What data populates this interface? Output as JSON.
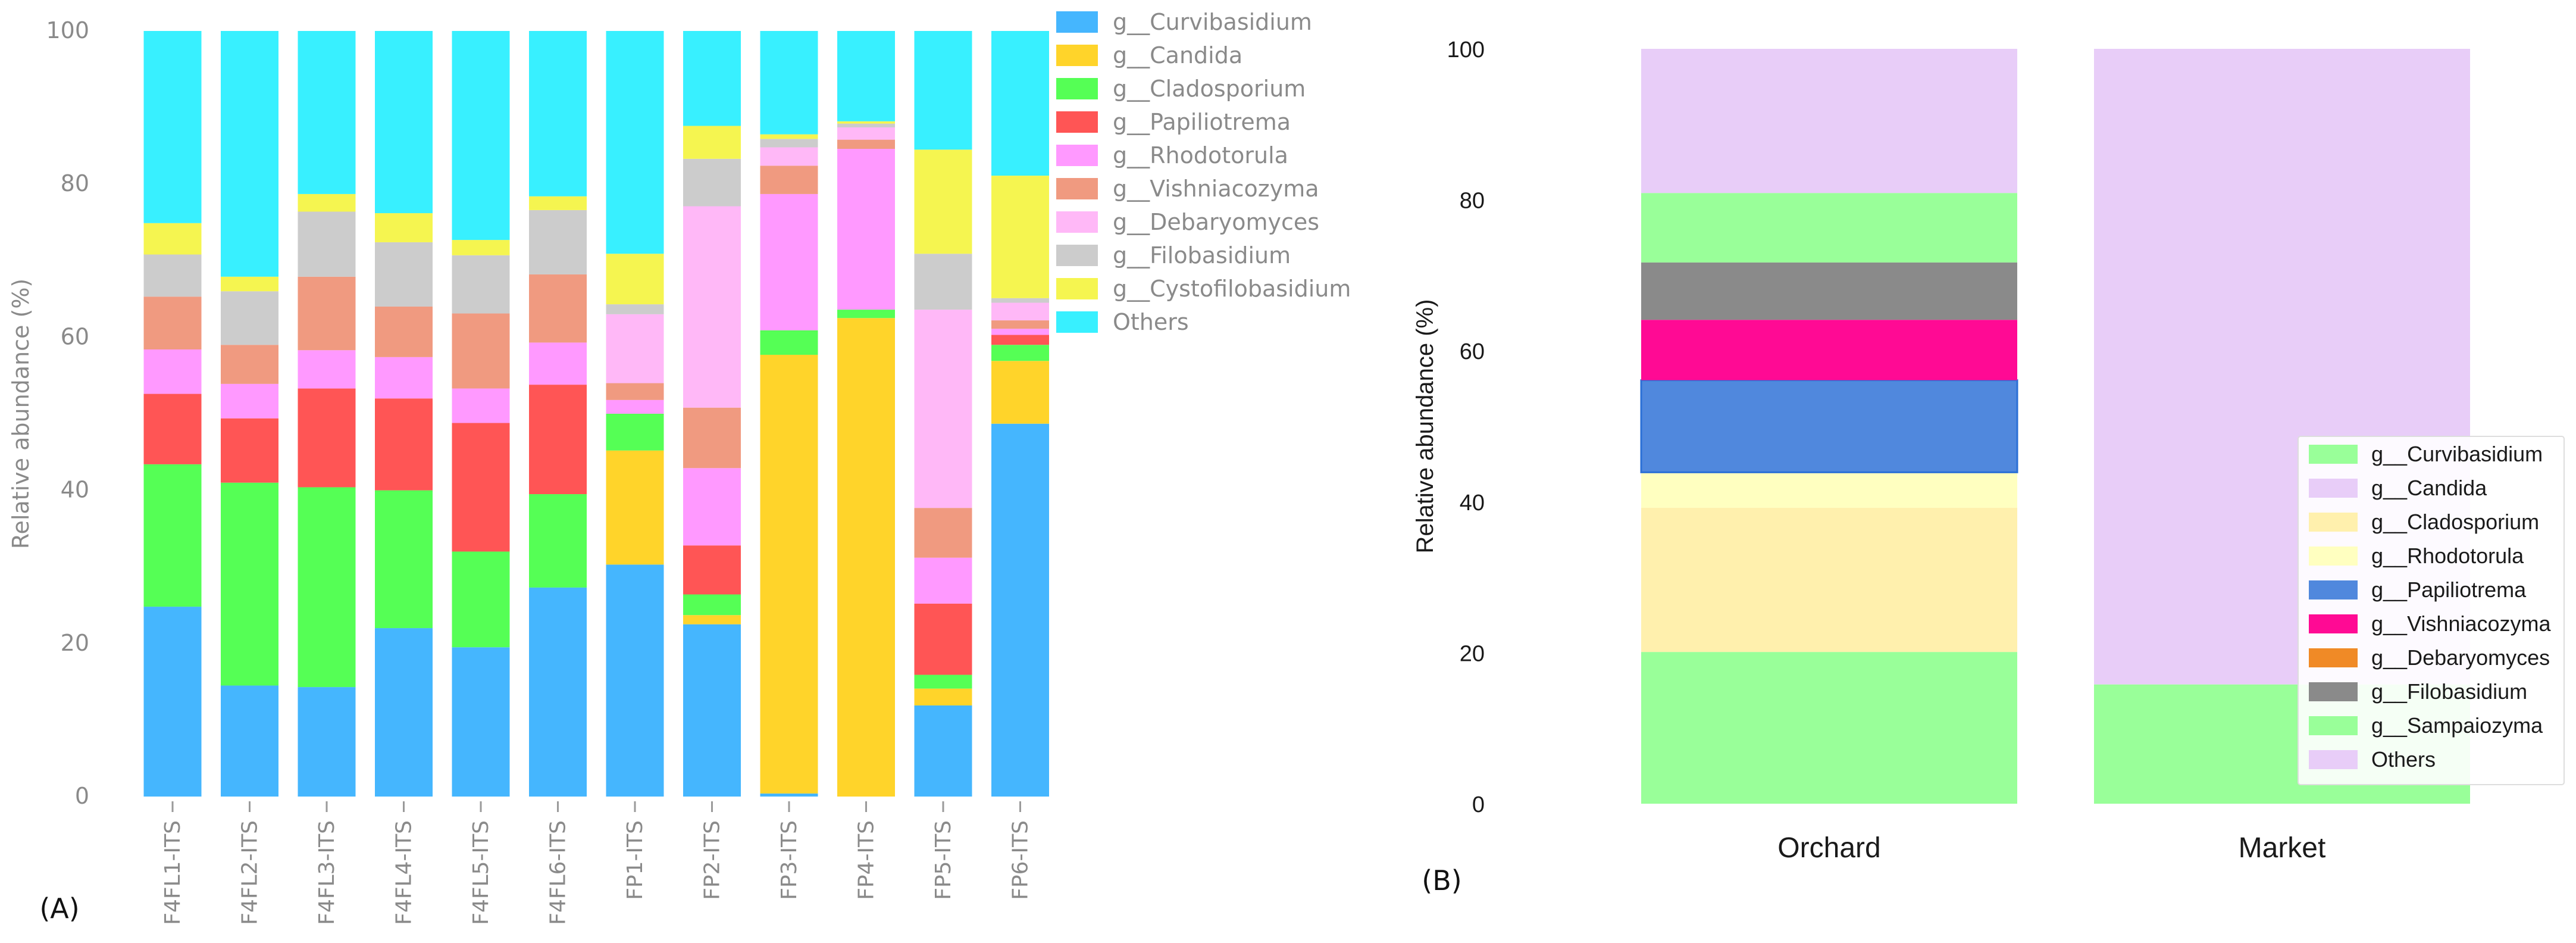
{
  "chart_data": [
    {
      "type": "bar",
      "stacked": true,
      "panel_label": "(A)",
      "ylabel": "Relative abundance (%)",
      "ylim": [
        0,
        100
      ],
      "yticks": [
        0,
        20,
        40,
        60,
        80,
        100
      ],
      "grid": false,
      "legend_placement": "right",
      "categories": [
        "F4FL1-ITS",
        "F4FL2-ITS",
        "F4FL3-ITS",
        "F4FL4-ITS",
        "F4FL5-ITS",
        "F4FL6-ITS",
        "FP1-ITS",
        "FP2-ITS",
        "FP3-ITS",
        "FP4-ITS",
        "FP5-ITS",
        "FP6-ITS"
      ],
      "series": [
        {
          "name": "g__Curvibasidium",
          "color": "#45b6fe",
          "values": [
            24.8,
            14.5,
            14.3,
            22.0,
            19.5,
            27.3,
            30.3,
            22.5,
            0.4,
            0.0,
            11.9,
            48.7
          ]
        },
        {
          "name": "g__Candida",
          "color": "#ffd42a",
          "values": [
            0.0,
            0.0,
            0.0,
            0.0,
            0.0,
            0.0,
            14.9,
            1.2,
            57.3,
            62.5,
            2.2,
            8.2
          ]
        },
        {
          "name": "g__Cladosporium",
          "color": "#55ff55",
          "values": [
            18.6,
            26.5,
            26.1,
            18.0,
            12.5,
            12.2,
            4.8,
            2.7,
            3.2,
            1.1,
            1.8,
            2.1
          ]
        },
        {
          "name": "g__Papiliotrema",
          "color": "#ff5555",
          "values": [
            9.2,
            8.4,
            12.9,
            12.0,
            16.8,
            14.3,
            0.0,
            6.4,
            0.0,
            0.0,
            9.3,
            1.3
          ]
        },
        {
          "name": "g__Rhodotorula",
          "color": "#ff99ff",
          "values": [
            5.8,
            4.5,
            5.0,
            5.4,
            4.5,
            5.5,
            1.8,
            10.1,
            17.8,
            21.0,
            6.0,
            0.8
          ]
        },
        {
          "name": "g__Vishniacozyma",
          "color": "#f09a80",
          "values": [
            6.9,
            5.1,
            9.6,
            6.6,
            9.8,
            8.9,
            2.2,
            7.9,
            3.7,
            1.2,
            6.5,
            1.1
          ]
        },
        {
          "name": "g__Debaryomyces",
          "color": "#ffb8f7",
          "values": [
            0.0,
            0.0,
            0.0,
            0.0,
            0.0,
            0.0,
            9.0,
            26.3,
            2.4,
            1.6,
            25.9,
            2.3
          ]
        },
        {
          "name": "g__Filobasidium",
          "color": "#cccccc",
          "values": [
            5.5,
            7.0,
            8.5,
            8.4,
            7.6,
            8.4,
            1.3,
            6.2,
            1.1,
            0.5,
            7.3,
            0.6
          ]
        },
        {
          "name": "g__Cystofilobasidium",
          "color": "#f5f550",
          "values": [
            4.1,
            1.9,
            2.3,
            3.8,
            2.0,
            1.8,
            6.6,
            4.3,
            0.6,
            0.3,
            13.6,
            16.0
          ]
        },
        {
          "name": "Others",
          "color": "#38f0ff",
          "values": [
            25.1,
            32.1,
            21.3,
            23.8,
            27.3,
            21.6,
            29.1,
            12.4,
            13.5,
            11.8,
            15.5,
            18.9
          ]
        }
      ]
    },
    {
      "type": "bar",
      "stacked": true,
      "panel_label": "(B)",
      "ylabel": "Relative abundance (%)",
      "ylim": [
        0,
        100
      ],
      "yticks": [
        0,
        20,
        40,
        60,
        80,
        100
      ],
      "grid": false,
      "legend_placement": "bottom-right",
      "categories": [
        "Orchard",
        "Market"
      ],
      "series": [
        {
          "name": "g__Curvibasidium",
          "color": "#99ff99",
          "values": [
            20.1,
            0.0
          ]
        },
        {
          "name": "g__Candida",
          "color": "#e8cdf8",
          "values": [
            0.0,
            0.0
          ]
        },
        {
          "name": "g__Cladosporium",
          "color": "#fff0ad",
          "values": [
            19.1,
            0.0
          ]
        },
        {
          "name": "g__Rhodotorula",
          "color": "#ffffc0",
          "values": [
            4.7,
            0.0
          ]
        },
        {
          "name": "g__Papiliotrema",
          "color": "#5088dd",
          "values": [
            12.2,
            0.0
          ]
        },
        {
          "name": "g__Vishniacozyma",
          "color": "#ff0a94",
          "values": [
            8.0,
            0.0
          ]
        },
        {
          "name": "g__Debaryomyces",
          "color": "#f08a26",
          "values": [
            0.0,
            0.0
          ]
        },
        {
          "name": "g__Filobasidium",
          "color": "#8a8a8a",
          "values": [
            7.6,
            0.0
          ]
        },
        {
          "name": "g__Sampaiozyma",
          "color": "#99ff99",
          "values": [
            9.2,
            15.8
          ]
        },
        {
          "name": "Others",
          "color": "#e8cdf8",
          "values": [
            19.1,
            84.2
          ]
        }
      ]
    }
  ]
}
